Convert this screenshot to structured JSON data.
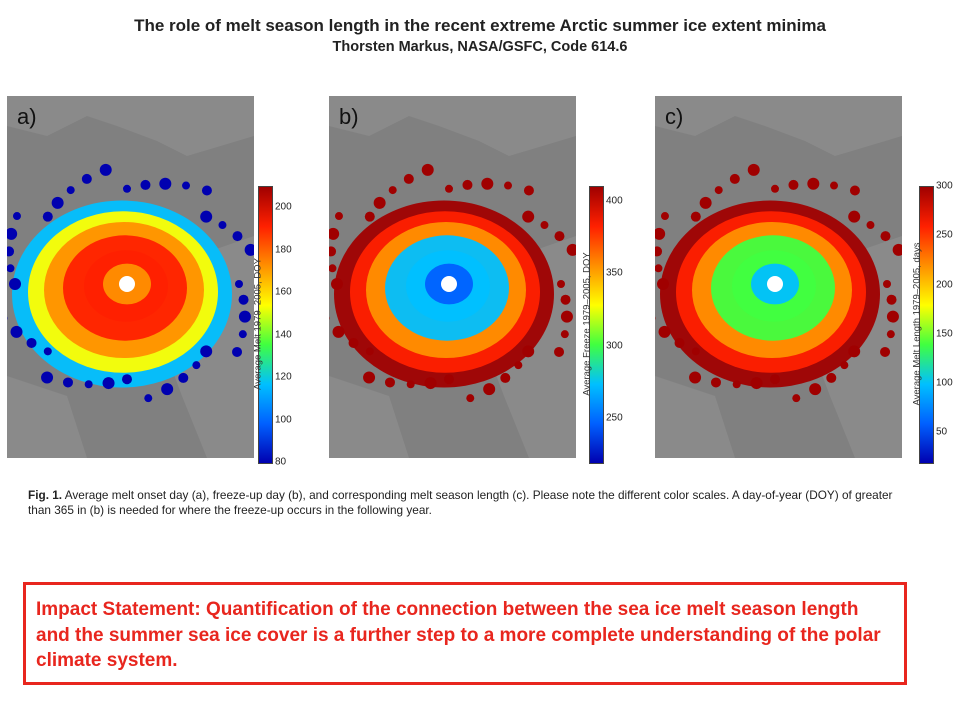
{
  "header": {
    "title": "The role of melt season length in the recent extreme Arctic summer ice extent minima",
    "subtitle": "Thorsten Markus, NASA/GSFC, Code 614.6"
  },
  "figure": {
    "panels": [
      {
        "label": "a)",
        "colorbar_title": "Average Melt 1979–2005, DOY",
        "ticks": [
          "200",
          "180",
          "160",
          "140",
          "120",
          "100",
          "80"
        ],
        "scale": [
          80,
          210
        ],
        "ice_level": 0.8,
        "colors": [
          "#0000b0",
          "#0060ff",
          "#00c0ff",
          "#40ff40",
          "#ffff00",
          "#ff9000",
          "#ff2000",
          "#a00000"
        ]
      },
      {
        "label": "b)",
        "colorbar_title": "Average Freeze 1979–2005, DOY",
        "ticks": [
          "400",
          "350",
          "300",
          "250"
        ],
        "scale": [
          220,
          410
        ],
        "ice_level": 0.35,
        "colors": [
          "#0000b0",
          "#0060ff",
          "#00c0ff",
          "#40ff40",
          "#ffff00",
          "#ff9000",
          "#ff2000",
          "#a00000"
        ]
      },
      {
        "label": "c)",
        "colorbar_title": "Average Melt Length 1979–2005, days",
        "ticks": [
          "300",
          "250",
          "200",
          "150",
          "100",
          "50"
        ],
        "scale": [
          20,
          300
        ],
        "ice_level": 0.45,
        "colors": [
          "#0000b0",
          "#0060ff",
          "#00c0ff",
          "#40ff40",
          "#ffff00",
          "#ff9000",
          "#ff2000",
          "#a00000"
        ]
      }
    ]
  },
  "caption": {
    "label": "Fig. 1.",
    "text": "Average melt onset day (a), freeze-up day (b), and corresponding melt season length (c). Please note the different color scales. A day-of-year (DOY) of greater than 365 in (b) is needed for where the freeze-up occurs in the following year."
  },
  "impact": {
    "text": "Impact Statement: Quantification of the connection between the sea ice melt season length and the summer sea ice cover is a further step to a more complete understanding of the polar climate system."
  },
  "colors": {
    "title": "#222222",
    "impact": "#e8261e",
    "land": "#808080",
    "pole": "#ffffff"
  }
}
